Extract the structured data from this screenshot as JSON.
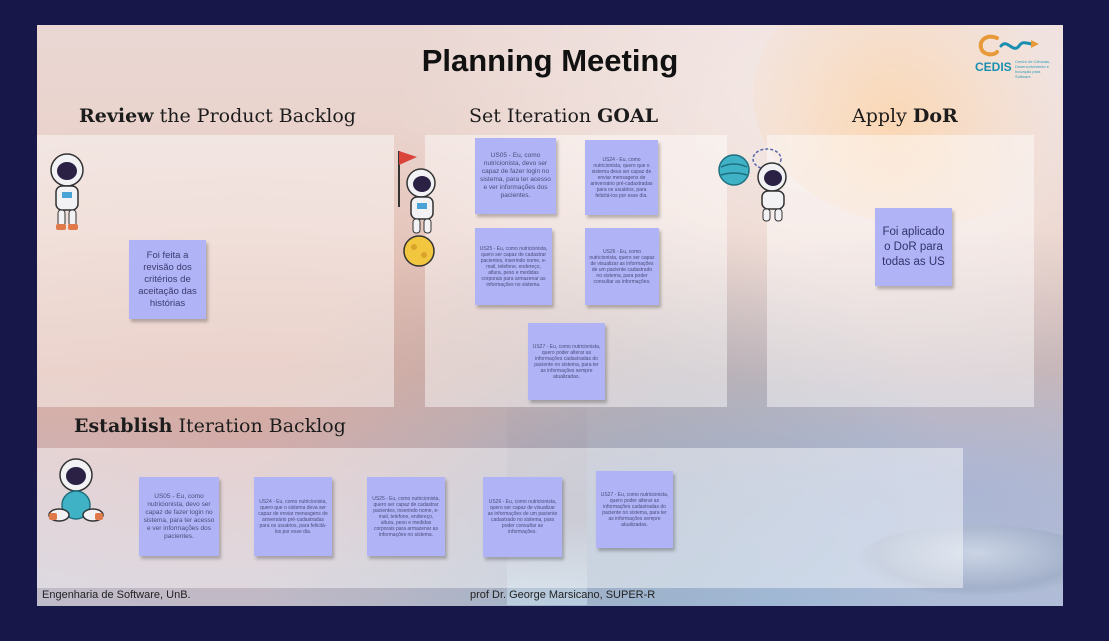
{
  "board": {
    "title": "Planning Meeting",
    "logo": {
      "text": "CEDIS",
      "subtitle": "Centro de Ciências, Desenvolvimento e Inovação para Software"
    },
    "footer_left": "Engenharia de Software, UnB.",
    "footer_right": "prof Dr. George Marsicano, SUPER-R"
  },
  "sections": {
    "review": {
      "bold": "Review",
      "rest": " the Product Backlog",
      "note": "Foi feita a revisão dos critérios de aceitação das histórias"
    },
    "goal": {
      "pre": "Set Iteration ",
      "bold": "GOAL"
    },
    "dor": {
      "pre": "Apply ",
      "bold": "DoR",
      "note": "Foi aplicado o DoR para todas as US"
    },
    "establish": {
      "bold": "Establish",
      "rest": " Iteration Backlog"
    }
  },
  "stories": {
    "us05": "US05 - Eu, como nutricionista, devo ser capaz de fazer login no sistema, para ter acesso e ver informações dos pacientes.",
    "us24": "US24 - Eu, como nutricionista, quero que o sistema deva ser capaz de enviar mensagens de aniversário pré-cadastradas para os usuários, para felicitá-los por esse dia.",
    "us25": "US25 - Eu, como nutricionista, quero ser capaz de cadastrar pacientes, inserindo nome, e-mail, telefone, endereço, altura, peso e medidas corporais para armazenar as informações no sistema.",
    "us26": "US26 - Eu, como nutricionista, quero ser capaz de visualizar as informações de um paciente cadastrado no sistema, para poder consultar as informações.",
    "us27": "US27 - Eu, como nutricionista, quero poder alterar as informações cadastradas do paciente no sistema, para ter as informações sempre atualizadas."
  },
  "colors": {
    "sticky": "#b0b4f7",
    "frame": "#17174a",
    "logo": "#1b8fb0"
  }
}
